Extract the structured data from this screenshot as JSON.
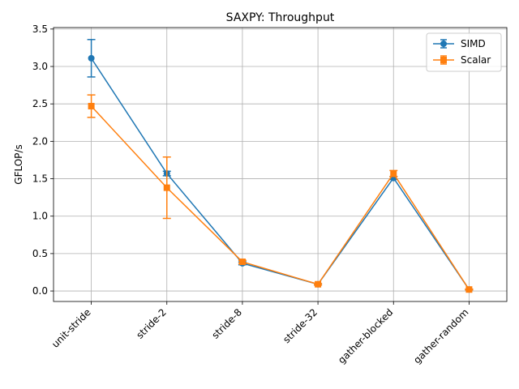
{
  "chart_data": {
    "type": "line",
    "title": "SAXPY: Throughput",
    "xlabel": "",
    "ylabel": "GFLOP/s",
    "categories": [
      "unit-stride",
      "stride-2",
      "stride-8",
      "stride-32",
      "gather-blocked",
      "gather-random"
    ],
    "ylim": [
      -0.14,
      3.52
    ],
    "yticks": [
      "0.0",
      "0.5",
      "1.0",
      "1.5",
      "2.0",
      "2.5",
      "3.0",
      "3.5"
    ],
    "grid": true,
    "legend_position": "top-right",
    "series": [
      {
        "name": "SIMD",
        "color": "#1f77b4",
        "marker": "circle",
        "values": [
          3.11,
          1.57,
          0.37,
          0.09,
          1.51,
          0.02
        ],
        "errors": [
          0.25,
          0.03,
          0.02,
          0.01,
          0.02,
          0.005
        ]
      },
      {
        "name": "Scalar",
        "color": "#ff7f0e",
        "marker": "square",
        "values": [
          2.47,
          1.38,
          0.39,
          0.09,
          1.57,
          0.02
        ],
        "errors": [
          0.15,
          0.41,
          0.02,
          0.01,
          0.04,
          0.005
        ]
      }
    ]
  }
}
